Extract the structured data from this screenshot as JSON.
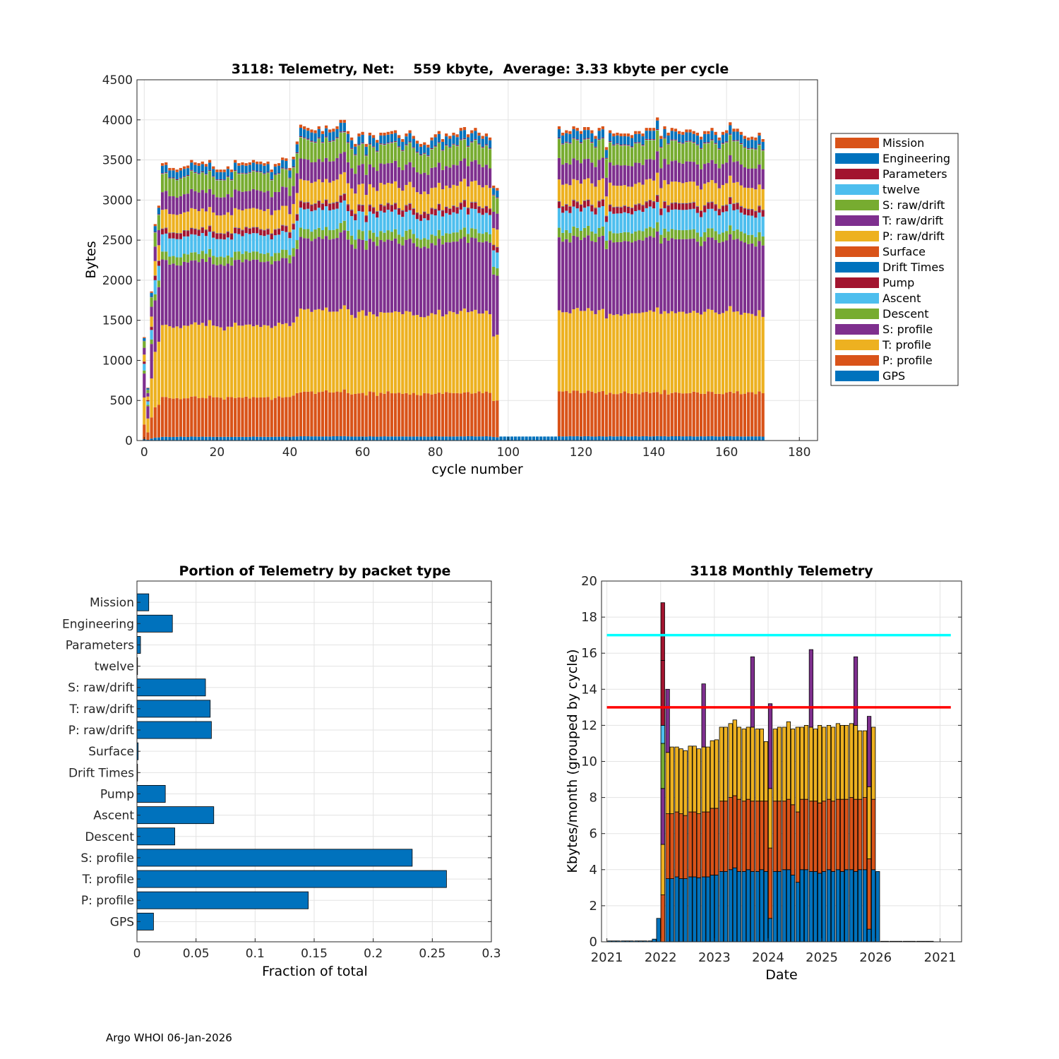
{
  "footer": "Argo WHOI 06-Jan-2026",
  "chart_data": [
    {
      "type": "bar",
      "stacked": true,
      "title": "3118: Telemetry, Net:    559 kbyte,  Average: 3.33 kbyte per cycle",
      "xlabel": "cycle number",
      "ylabel": "Bytes",
      "xlim": [
        -2,
        185
      ],
      "ylim": [
        0,
        4500
      ],
      "xticks": [
        "0",
        "20",
        "40",
        "60",
        "80",
        "100",
        "120",
        "140",
        "160",
        "180"
      ],
      "yticks": [
        "0",
        "500",
        "1000",
        "1500",
        "2000",
        "2500",
        "3000",
        "3500",
        "4000",
        "4500"
      ],
      "grid": true,
      "legend_position": "outside-right",
      "series": [
        {
          "name": "GPS",
          "color": "#0072BD",
          "nominal": 50
        },
        {
          "name": "P: profile",
          "color": "#D95319",
          "nominal": 530
        },
        {
          "name": "T: profile",
          "color": "#EDB120",
          "nominal": 975
        },
        {
          "name": "S: profile",
          "color": "#7E2F8E",
          "nominal": 865
        },
        {
          "name": "Descent",
          "color": "#77AC30",
          "nominal": 110
        },
        {
          "name": "Ascent",
          "color": "#4DBEEE",
          "nominal": 240
        },
        {
          "name": "Pump",
          "color": "#A2142F",
          "nominal": 75
        },
        {
          "name": "Drift Times",
          "color": "#0072BD",
          "nominal": 5
        },
        {
          "name": "Surface",
          "color": "#D95319",
          "nominal": 5
        },
        {
          "name": "P: raw/drift",
          "color": "#EDB120",
          "nominal": 250
        },
        {
          "name": "T: raw/drift",
          "color": "#7E2F8E",
          "nominal": 245
        },
        {
          "name": "S: raw/drift",
          "color": "#77AC30",
          "nominal": 235
        },
        {
          "name": "twelve",
          "color": "#4DBEEE",
          "nominal": 5
        },
        {
          "name": "Parameters",
          "color": "#A2142F",
          "nominal": 10
        },
        {
          "name": "Engineering",
          "color": "#0072BD",
          "nominal": 100
        },
        {
          "name": "Mission",
          "color": "#D95319",
          "nominal": 35
        }
      ],
      "legend": [
        "Mission",
        "Engineering",
        "Parameters",
        "twelve",
        "S: raw/drift",
        "T: raw/drift",
        "P: raw/drift",
        "Surface",
        "Drift Times",
        "Pump",
        "Ascent",
        "Descent",
        "S: profile",
        "T: profile",
        "P: profile",
        "GPS"
      ],
      "totals": [
        1290,
        660,
        1860,
        2700,
        2930,
        3460,
        3470,
        3400,
        3400,
        3380,
        3400,
        3420,
        3430,
        3500,
        3470,
        3460,
        3480,
        3450,
        3500,
        3420,
        3380,
        3380,
        3380,
        3420,
        3380,
        3500,
        3460,
        3470,
        3460,
        3470,
        3500,
        3480,
        3480,
        3460,
        3480,
        3380,
        3450,
        3460,
        3530,
        3520,
        3400,
        3540,
        3730,
        3940,
        3920,
        3900,
        3880,
        3870,
        3920,
        3860,
        3930,
        3880,
        3890,
        3920,
        4000,
        4000,
        3860,
        3780,
        3700,
        3830,
        3850,
        3700,
        3840,
        3810,
        3750,
        3840,
        3840,
        3850,
        3860,
        3870,
        3810,
        3760,
        3830,
        3870,
        3800,
        3740,
        3700,
        3720,
        3690,
        3780,
        3820,
        3860,
        3760,
        3830,
        3800,
        3840,
        3820,
        3900,
        3910,
        3820,
        3870,
        3900,
        3840,
        3800,
        3830,
        3780,
        3180,
        3150,
        50,
        50,
        50,
        50,
        50,
        50,
        50,
        50,
        50,
        50,
        50,
        50,
        50,
        50,
        50,
        50,
        3920,
        3840,
        3870,
        3860,
        3920,
        3900,
        3860,
        3910,
        3910,
        3870,
        3800,
        3900,
        3920,
        3660,
        3870,
        3830,
        3840,
        3830,
        3830,
        3830,
        3810,
        3860,
        3860,
        3830,
        3900,
        3900,
        3900,
        4030,
        3800,
        3920,
        3840,
        3900,
        3890,
        3860,
        3850,
        3880,
        3880,
        3860,
        3840,
        3790,
        3860,
        3860,
        3900,
        3850,
        3780,
        3850,
        3870,
        3970,
        3890,
        3890,
        3850,
        3800,
        3780,
        3790,
        3780,
        3840,
        3760
      ]
    },
    {
      "type": "bar",
      "orientation": "horizontal",
      "title": "Portion of Telemetry by packet type",
      "xlabel": "Fraction of total",
      "xlim": [
        0,
        0.3
      ],
      "xticks": [
        "0",
        "0.05",
        "0.1",
        "0.15",
        "0.2",
        "0.25",
        "0.3"
      ],
      "grid": true,
      "color": "#0072BD",
      "categories": [
        "GPS",
        "P: profile",
        "T: profile",
        "S: profile",
        "Descent",
        "Ascent",
        "Pump",
        "Drift Times",
        "Surface",
        "P: raw/drift",
        "T: raw/drift",
        "S: raw/drift",
        "twelve",
        "Parameters",
        "Engineering",
        "Mission"
      ],
      "values": [
        0.014,
        0.145,
        0.262,
        0.233,
        0.032,
        0.065,
        0.024,
        0.0005,
        0.001,
        0.063,
        0.062,
        0.058,
        0.0004,
        0.003,
        0.03,
        0.01
      ]
    },
    {
      "type": "bar",
      "stacked": true,
      "title": "3118 Monthly Telemetry",
      "xlabel": "Date",
      "ylabel": "Kbytes/month (grouped by cycle)",
      "xlim": [
        2020.9,
        2027.6
      ],
      "ylim": [
        0,
        20
      ],
      "xticks": [
        "2021",
        "2022",
        "2023",
        "2024",
        "2025",
        "2026",
        "2021"
      ],
      "yticks": [
        "0",
        "2",
        "4",
        "6",
        "8",
        "10",
        "12",
        "14",
        "16",
        "18",
        "20"
      ],
      "grid": true,
      "reference_lines": [
        {
          "y": 17,
          "color": "#00FFFF",
          "x_range": [
            2021.0,
            2027.4
          ]
        },
        {
          "y": 13,
          "color": "#FF0000",
          "x_range": [
            2021.0,
            2027.4
          ]
        }
      ],
      "bars": [
        {
          "x": 2021.05,
          "segments": [
            0.05
          ]
        },
        {
          "x": 2021.13,
          "segments": [
            0.05
          ]
        },
        {
          "x": 2021.21,
          "segments": [
            0.05
          ]
        },
        {
          "x": 2021.3,
          "segments": [
            0.05
          ]
        },
        {
          "x": 2021.38,
          "segments": [
            0.05
          ]
        },
        {
          "x": 2021.46,
          "segments": [
            0.05
          ]
        },
        {
          "x": 2021.55,
          "segments": [
            0.05
          ]
        },
        {
          "x": 2021.63,
          "segments": [
            0.05
          ]
        },
        {
          "x": 2021.71,
          "segments": [
            0.05
          ]
        },
        {
          "x": 2021.8,
          "segments": [
            0.05
          ]
        },
        {
          "x": 2021.88,
          "segments": [
            0.15
          ]
        },
        {
          "x": 2021.96,
          "segments": [
            1.3
          ]
        },
        {
          "x": 2022.04,
          "segments": [
            2.6,
            2.8,
            3.1,
            2.5,
            1.0,
            3.6,
            3.2
          ],
          "colors": [
            "#D95319",
            "#EDB120",
            "#7E2F8E",
            "#77AC30",
            "#4DBEEE",
            "#A2142F",
            "#A2142F"
          ]
        },
        {
          "x": 2022.13,
          "segments": [
            3.5,
            3.6,
            3.4,
            3.5
          ]
        },
        {
          "x": 2022.21,
          "segments": [
            3.5,
            3.6,
            3.7
          ]
        },
        {
          "x": 2022.3,
          "segments": [
            3.6,
            3.6,
            3.6
          ]
        },
        {
          "x": 2022.38,
          "segments": [
            3.5,
            3.6,
            3.6
          ]
        },
        {
          "x": 2022.46,
          "segments": [
            3.5,
            3.5,
            3.6
          ]
        },
        {
          "x": 2022.55,
          "segments": [
            3.6,
            3.6,
            3.65
          ]
        },
        {
          "x": 2022.63,
          "segments": [
            3.6,
            3.6,
            3.65
          ]
        },
        {
          "x": 2022.71,
          "segments": [
            3.55,
            3.55,
            3.6
          ]
        },
        {
          "x": 2022.8,
          "segments": [
            3.6,
            3.6,
            3.6,
            3.5
          ]
        },
        {
          "x": 2022.88,
          "segments": [
            3.6,
            3.6,
            3.6
          ]
        },
        {
          "x": 2022.96,
          "segments": [
            3.7,
            3.7,
            3.75
          ]
        },
        {
          "x": 2023.04,
          "segments": [
            3.7,
            3.7,
            3.8
          ]
        },
        {
          "x": 2023.13,
          "segments": [
            3.9,
            3.9,
            4.1
          ]
        },
        {
          "x": 2023.21,
          "segments": [
            3.9,
            3.9,
            4.1
          ]
        },
        {
          "x": 2023.3,
          "segments": [
            4.0,
            4.0,
            4.1
          ]
        },
        {
          "x": 2023.38,
          "segments": [
            4.1,
            4.0,
            4.2
          ]
        },
        {
          "x": 2023.46,
          "segments": [
            3.9,
            4.0,
            4.0
          ]
        },
        {
          "x": 2023.55,
          "segments": [
            3.9,
            3.9,
            4.0
          ]
        },
        {
          "x": 2023.63,
          "segments": [
            4.0,
            3.9,
            4.0
          ]
        },
        {
          "x": 2023.71,
          "segments": [
            3.9,
            3.9,
            4.1,
            3.9
          ]
        },
        {
          "x": 2023.8,
          "segments": [
            3.9,
            3.9,
            4.0
          ]
        },
        {
          "x": 2023.88,
          "segments": [
            4.0,
            3.8,
            4.0
          ]
        },
        {
          "x": 2023.96,
          "segments": [
            3.9,
            3.9,
            3.3
          ]
        },
        {
          "x": 2024.04,
          "segments": [
            1.3,
            3.9,
            3.3,
            4.7
          ]
        },
        {
          "x": 2024.13,
          "segments": [
            3.9,
            3.9,
            4.0
          ]
        },
        {
          "x": 2024.21,
          "segments": [
            3.9,
            3.9,
            4.1
          ]
        },
        {
          "x": 2024.3,
          "segments": [
            4.0,
            3.8,
            4.1
          ]
        },
        {
          "x": 2024.38,
          "segments": [
            4.0,
            3.9,
            4.3
          ]
        },
        {
          "x": 2024.46,
          "segments": [
            3.7,
            3.9,
            4.2
          ]
        },
        {
          "x": 2024.55,
          "segments": [
            3.3,
            3.9,
            4.7
          ]
        },
        {
          "x": 2024.63,
          "segments": [
            4.0,
            3.9,
            4.0
          ]
        },
        {
          "x": 2024.71,
          "segments": [
            4.0,
            3.9,
            4.1
          ]
        },
        {
          "x": 2024.8,
          "segments": [
            3.9,
            3.9,
            4.1,
            4.3
          ]
        },
        {
          "x": 2024.88,
          "segments": [
            3.9,
            3.9,
            4.0
          ]
        },
        {
          "x": 2024.96,
          "segments": [
            3.8,
            3.9,
            4.3
          ]
        },
        {
          "x": 2025.04,
          "segments": [
            3.9,
            3.9,
            4.1
          ]
        },
        {
          "x": 2025.13,
          "segments": [
            4.0,
            3.9,
            4.1
          ]
        },
        {
          "x": 2025.21,
          "segments": [
            3.9,
            3.9,
            4.1
          ]
        },
        {
          "x": 2025.3,
          "segments": [
            4.0,
            3.9,
            4.2
          ]
        },
        {
          "x": 2025.38,
          "segments": [
            3.9,
            4.0,
            4.1
          ]
        },
        {
          "x": 2025.46,
          "segments": [
            4.0,
            3.9,
            4.1
          ]
        },
        {
          "x": 2025.55,
          "segments": [
            4.0,
            4.0,
            4.1
          ]
        },
        {
          "x": 2025.63,
          "segments": [
            3.9,
            4.0,
            4.1,
            3.8
          ]
        },
        {
          "x": 2025.71,
          "segments": [
            4.0,
            3.9,
            3.8
          ]
        },
        {
          "x": 2025.8,
          "segments": [
            4.0,
            4.0,
            3.7
          ]
        },
        {
          "x": 2025.88,
          "segments": [
            0.7,
            3.9,
            4.0,
            3.9
          ]
        },
        {
          "x": 2025.96,
          "segments": [
            4.0,
            3.9,
            4.0
          ]
        },
        {
          "x": 2026.04,
          "segments": [
            3.9
          ]
        },
        {
          "x": 2026.13,
          "segments": [
            0.03
          ]
        },
        {
          "x": 2026.21,
          "segments": [
            0.03
          ]
        },
        {
          "x": 2026.3,
          "segments": [
            0.03
          ]
        },
        {
          "x": 2026.38,
          "segments": [
            0.03
          ]
        },
        {
          "x": 2026.46,
          "segments": [
            0.03
          ]
        },
        {
          "x": 2026.55,
          "segments": [
            0.03
          ]
        },
        {
          "x": 2026.63,
          "segments": [
            0.03
          ]
        },
        {
          "x": 2026.71,
          "segments": [
            0.03
          ]
        },
        {
          "x": 2026.8,
          "segments": [
            0.03
          ]
        },
        {
          "x": 2026.88,
          "segments": [
            0.03
          ]
        },
        {
          "x": 2026.96,
          "segments": [
            0.03
          ]
        },
        {
          "x": 2027.04,
          "segments": [
            0.03
          ]
        }
      ]
    }
  ]
}
